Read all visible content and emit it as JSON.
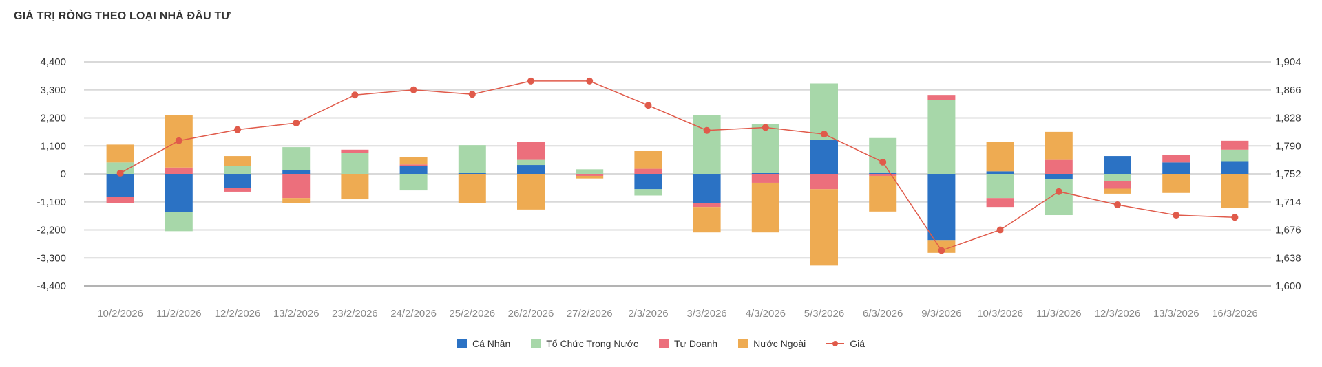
{
  "title": "GIÁ TRỊ RÒNG THEO LOẠI NHÀ ĐẦU TƯ",
  "chart_data": {
    "type": "bar",
    "stacked": true,
    "categories": [
      "10/2/2026",
      "11/2/2026",
      "12/2/2026",
      "13/2/2026",
      "23/2/2026",
      "24/2/2026",
      "25/2/2026",
      "26/2/2026",
      "27/2/2026",
      "2/3/2026",
      "3/3/2026",
      "4/3/2026",
      "5/3/2026",
      "6/3/2026",
      "9/3/2026",
      "10/3/2026",
      "11/3/2026",
      "12/3/2026",
      "13/3/2026",
      "16/3/2026"
    ],
    "series": [
      {
        "name": "Cá Nhân",
        "color": "#2b72c4",
        "values": [
          -900,
          -1500,
          -550,
          150,
          0,
          300,
          30,
          350,
          0,
          -600,
          -1150,
          50,
          1350,
          60,
          -2600,
          100,
          -220,
          700,
          450,
          500
        ]
      },
      {
        "name": "Tổ Chức Trong Nước",
        "color": "#a7d7a9",
        "values": [
          450,
          -750,
          300,
          900,
          820,
          -650,
          1100,
          200,
          180,
          -250,
          2300,
          1900,
          2200,
          1350,
          2900,
          -950,
          -1400,
          -280,
          0,
          450
        ]
      },
      {
        "name": "Tự Doanh",
        "color": "#ec6f7c",
        "values": [
          -250,
          250,
          -150,
          -950,
          130,
          70,
          0,
          700,
          -80,
          200,
          -150,
          -350,
          -600,
          -80,
          200,
          -350,
          550,
          -300,
          300,
          350
        ]
      },
      {
        "name": "Nước Ngoài",
        "color": "#eeab52",
        "values": [
          700,
          2050,
          400,
          -200,
          -1000,
          300,
          -1150,
          -1400,
          -100,
          700,
          -1000,
          -1950,
          -3000,
          -1400,
          -500,
          1150,
          1100,
          -200,
          -750,
          -1350
        ]
      }
    ],
    "line": {
      "name": "Giá",
      "color": "#e05a4a",
      "axis": "right",
      "values": [
        1753,
        1797,
        1812,
        1821,
        1859,
        1866,
        1860,
        1878,
        1878,
        1845,
        1811,
        1815,
        1806,
        1768,
        1648,
        1676,
        1728,
        1710,
        1696,
        1693
      ]
    },
    "ylim_left": [
      -4400,
      4400
    ],
    "yticks_left": [
      "4,400",
      "3,300",
      "2,200",
      "1,100",
      "0",
      "-1,100",
      "-2,200",
      "-3,300",
      "-4,400"
    ],
    "ylim_right": [
      1600,
      1904
    ],
    "yticks_right": [
      "1,904",
      "1,866",
      "1,828",
      "1,790",
      "1,752",
      "1,714",
      "1,676",
      "1,638",
      "1,600"
    ],
    "grid": true,
    "legend_position": "bottom"
  }
}
